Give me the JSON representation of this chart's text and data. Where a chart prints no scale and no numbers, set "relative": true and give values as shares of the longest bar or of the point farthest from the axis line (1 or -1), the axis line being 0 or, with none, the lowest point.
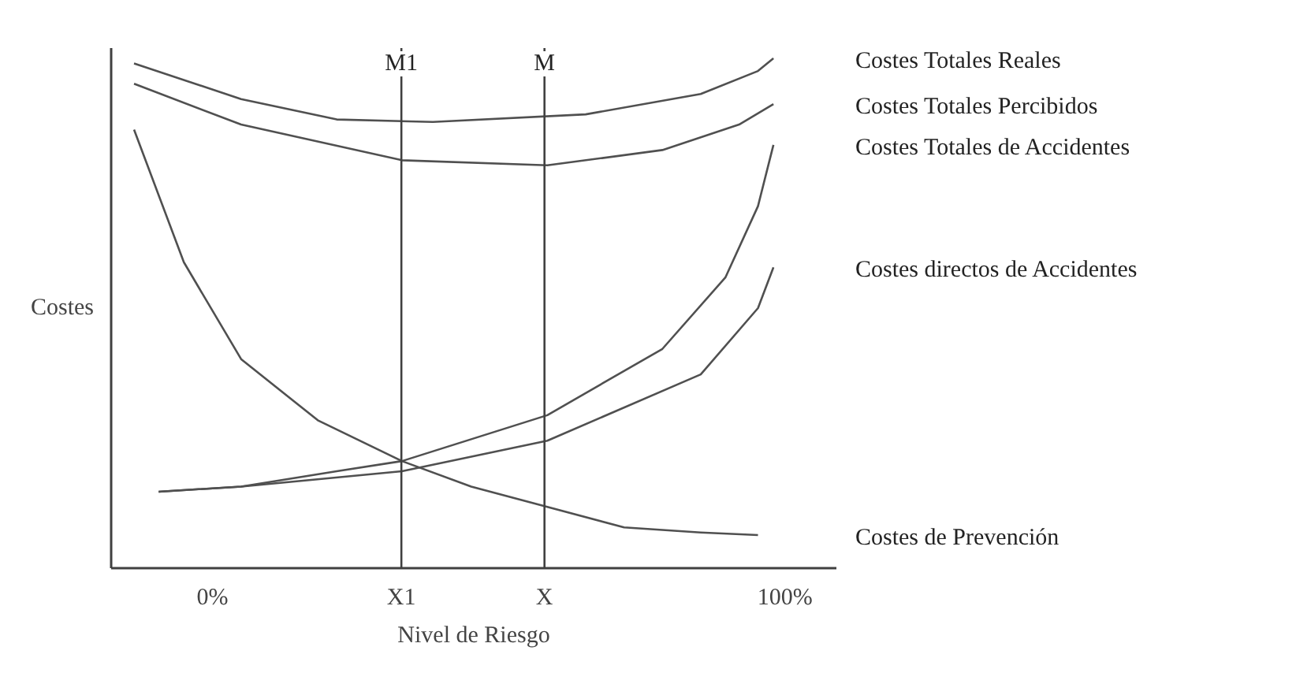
{
  "chart_data": {
    "type": "line",
    "relative": true,
    "xlabel": "Nivel de Riesgo",
    "ylabel": "Costes",
    "xlim": [
      -17.7,
      109
    ],
    "xticks": [
      {
        "value": 0,
        "label": "0%"
      },
      {
        "value": 33,
        "label": "X1"
      },
      {
        "value": 58,
        "label": "X"
      },
      {
        "value": 100,
        "label": "100%"
      }
    ],
    "grid": false,
    "marker": "none",
    "line_style": "solid",
    "ref_lines": [
      {
        "axis": "x",
        "value": 33,
        "label": "M1",
        "color": "#404040"
      },
      {
        "axis": "x",
        "value": 58,
        "label": "M",
        "color": "#404040"
      }
    ],
    "series": [
      {
        "name": "Costes Totales Reales",
        "color": "#505050",
        "x": [
          -13.7,
          5,
          21.7,
          38.5,
          65.2,
          85.3,
          95.3,
          98
        ],
        "values": [
          0.99,
          0.92,
          0.88,
          0.875,
          0.89,
          0.93,
          0.975,
          1
        ]
      },
      {
        "name": "Costes Totales Percibidos",
        "color": "#505050",
        "x": [
          -13.7,
          5,
          33.1,
          58.5,
          78.6,
          92,
          98
        ],
        "values": [
          0.95,
          0.87,
          0.8,
          0.79,
          0.82,
          0.87,
          0.91
        ]
      },
      {
        "name": "Costes Totales de Accidentes",
        "color": "#505050",
        "x": [
          -9.4,
          5,
          21.7,
          33.1,
          58.5,
          78.6,
          89.6,
          95.3,
          98
        ],
        "values": [
          0.15,
          0.16,
          0.19,
          0.21,
          0.3,
          0.43,
          0.57,
          0.71,
          0.83
        ]
      },
      {
        "name": "Costes directos de Accidentes",
        "color": "#505050",
        "x": [
          -9.4,
          5,
          33.1,
          58.5,
          85.3,
          95.3,
          98
        ],
        "values": [
          0.15,
          0.16,
          0.19,
          0.25,
          0.38,
          0.51,
          0.59
        ]
      },
      {
        "name": "Costes de Prevención",
        "color": "#505050",
        "x": [
          -13.7,
          -5,
          5,
          18.4,
          33.1,
          45.2,
          58.5,
          71.9,
          85.3,
          95.3
        ],
        "values": [
          0.86,
          0.6,
          0.41,
          0.29,
          0.21,
          0.16,
          0.12,
          0.08,
          0.07,
          0.065
        ]
      }
    ]
  }
}
